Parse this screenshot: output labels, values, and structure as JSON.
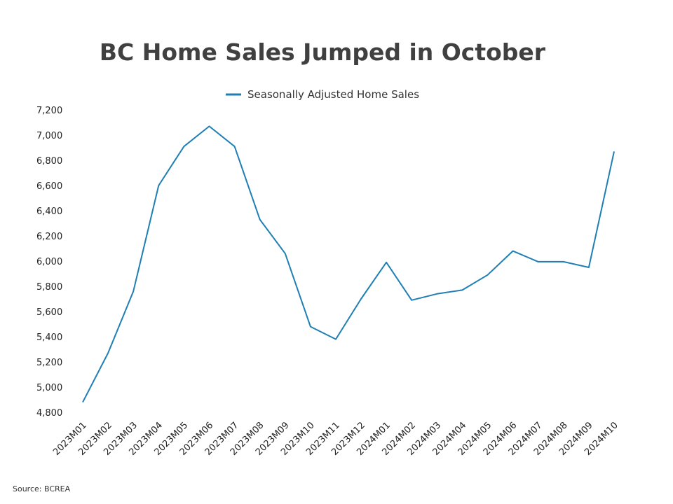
{
  "chart_data": {
    "type": "line",
    "title": "BC Home Sales Jumped in October",
    "xlabel": "",
    "ylabel": "",
    "ylim": [
      4800,
      7200
    ],
    "yticks": [
      "7,200",
      "7,000",
      "6,800",
      "6,600",
      "6,400",
      "6,200",
      "6,000",
      "5,800",
      "5,600",
      "5,400",
      "5,200",
      "5,000",
      "4,800"
    ],
    "grid": false,
    "legend_position": "top-center",
    "x": [
      "2023M01",
      "2023M02",
      "2023M03",
      "2023M04",
      "2023M05",
      "2023M06",
      "2023M07",
      "2023M08",
      "2023M09",
      "2023M10",
      "2023M11",
      "2023M12",
      "2024M01",
      "2024M02",
      "2024M03",
      "2024M04",
      "2024M05",
      "2024M06",
      "2024M07",
      "2024M08",
      "2024M09",
      "2024M10"
    ],
    "series": [
      {
        "name": "Seasonally Adjusted Home Sales",
        "color": "#1f7fb3",
        "values": [
          4880,
          5270,
          5760,
          6600,
          6910,
          7070,
          6910,
          6330,
          6060,
          5480,
          5380,
          5700,
          5990,
          5690,
          5740,
          5770,
          5890,
          6080,
          5995,
          5995,
          5950,
          6870
        ]
      }
    ]
  },
  "source": "Source: BCREA"
}
